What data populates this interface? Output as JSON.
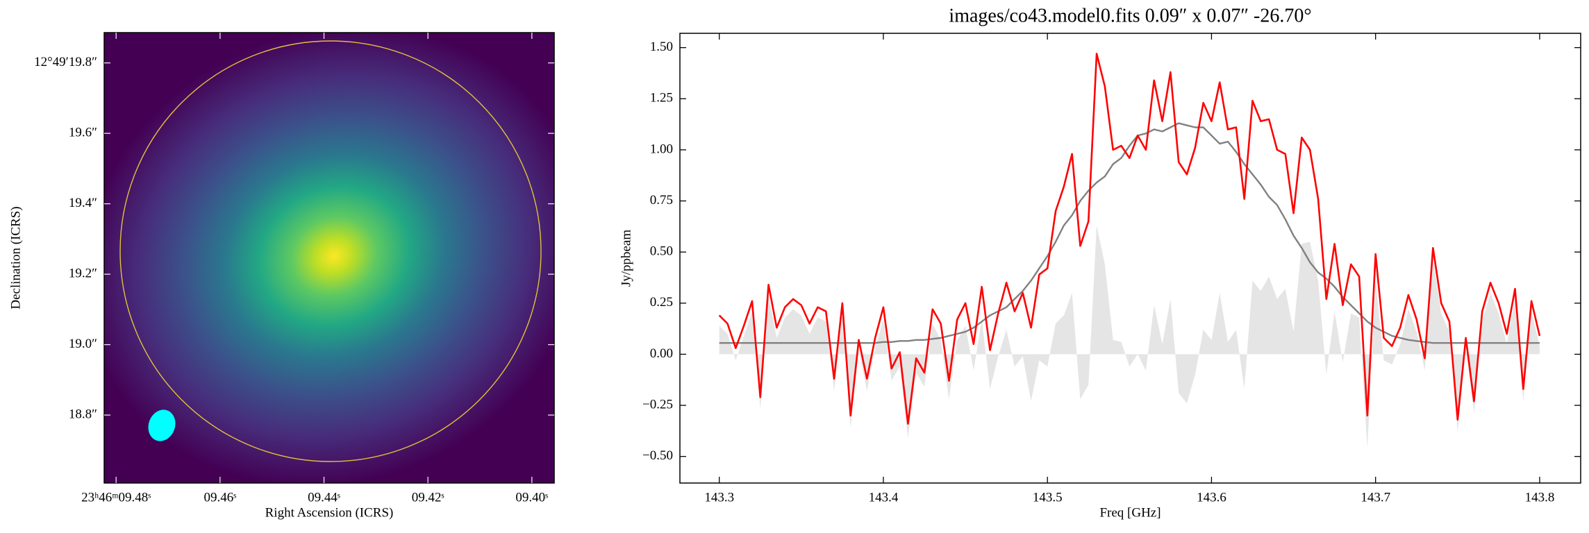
{
  "chart_data": [
    {
      "type": "image",
      "xlabel": "Right Ascension (ICRS)",
      "ylabel": "Declination (ICRS)",
      "colormap": "viridis",
      "xlim": [
        9.4823,
        9.3957
      ],
      "ylim": [
        18.607,
        19.886
      ],
      "xticks": [
        {
          "value": 9.48,
          "label": "23ʰ46ᵐ09.48ˢ"
        },
        {
          "value": 9.46,
          "label": "09.46ˢ"
        },
        {
          "value": 9.44,
          "label": "09.44ˢ"
        },
        {
          "value": 9.42,
          "label": "09.42ˢ"
        },
        {
          "value": 9.4,
          "label": "09.40ˢ"
        }
      ],
      "yticks": [
        {
          "value": 19.8,
          "label": "12°49′19.8″"
        },
        {
          "value": 19.6,
          "label": "19.6″"
        },
        {
          "value": 19.4,
          "label": "19.4″"
        },
        {
          "value": 19.2,
          "label": "19.2″"
        },
        {
          "value": 19.0,
          "label": "19.0″"
        },
        {
          "value": 18.8,
          "label": "18.8″"
        }
      ]
    },
    {
      "type": "line",
      "title": "images/co43.model0.fits 0.09″ x 0.07″ -26.70°",
      "xlabel": "Freq [GHz]",
      "ylabel": "Jy/ppbeam",
      "xlim": [
        143.276,
        143.825
      ],
      "ylim": [
        -0.63,
        1.57
      ],
      "xticks": [
        143.3,
        143.4,
        143.5,
        143.6,
        143.7,
        143.8
      ],
      "yticks": [
        {
          "value": 1.5,
          "label": "1.50"
        },
        {
          "value": 1.25,
          "label": "1.25"
        },
        {
          "value": 1.0,
          "label": "1.00"
        },
        {
          "value": 0.75,
          "label": "0.75"
        },
        {
          "value": 0.5,
          "label": "0.50"
        },
        {
          "value": 0.25,
          "label": "0.25"
        },
        {
          "value": 0.0,
          "label": "0.00"
        },
        {
          "value": -0.25,
          "label": "−0.25"
        },
        {
          "value": -0.5,
          "label": "−0.50"
        }
      ],
      "x": [
        143.3,
        143.305,
        143.31,
        143.315,
        143.32,
        143.325,
        143.33,
        143.335,
        143.34,
        143.345,
        143.35,
        143.355,
        143.36,
        143.365,
        143.37,
        143.375,
        143.38,
        143.385,
        143.39,
        143.395,
        143.4,
        143.405,
        143.41,
        143.415,
        143.42,
        143.425,
        143.43,
        143.435,
        143.44,
        143.445,
        143.45,
        143.455,
        143.46,
        143.465,
        143.47,
        143.475,
        143.48,
        143.485,
        143.49,
        143.495,
        143.5,
        143.505,
        143.51,
        143.515,
        143.52,
        143.525,
        143.53,
        143.535,
        143.54,
        143.545,
        143.55,
        143.555,
        143.56,
        143.565,
        143.57,
        143.575,
        143.58,
        143.585,
        143.59,
        143.595,
        143.6,
        143.605,
        143.61,
        143.615,
        143.62,
        143.625,
        143.63,
        143.635,
        143.64,
        143.645,
        143.65,
        143.655,
        143.66,
        143.665,
        143.67,
        143.675,
        143.68,
        143.685,
        143.69,
        143.695,
        143.7,
        143.705,
        143.71,
        143.715,
        143.72,
        143.725,
        143.73,
        143.735,
        143.74,
        143.745,
        143.75,
        143.755,
        143.76,
        143.765,
        143.77,
        143.775,
        143.78,
        143.785,
        143.79,
        143.795,
        143.8
      ],
      "series": [
        {
          "color": "#e5e5e5",
          "fill": true,
          "values": [
            0.14,
            0.1,
            -0.03,
            0.09,
            0.21,
            -0.27,
            0.29,
            0.08,
            0.18,
            0.22,
            0.19,
            0.1,
            0.18,
            0.16,
            -0.18,
            0.2,
            -0.36,
            0.02,
            -0.18,
            0.03,
            0.17,
            -0.13,
            -0.06,
            -0.41,
            -0.09,
            -0.16,
            0.15,
            0.07,
            -0.22,
            0.07,
            0.14,
            -0.08,
            0.17,
            -0.17,
            -0.01,
            0.12,
            -0.06,
            -0.01,
            -0.23,
            -0.03,
            -0.06,
            0.15,
            0.19,
            0.3,
            -0.22,
            -0.15,
            0.63,
            0.44,
            0.07,
            0.06,
            -0.06,
            0,
            -0.08,
            0.24,
            0.05,
            0.27,
            -0.19,
            -0.24,
            -0.1,
            0.12,
            0.07,
            0.3,
            0.06,
            0.12,
            -0.17,
            0.36,
            0.31,
            0.38,
            0.27,
            0.32,
            0.11,
            0.54,
            0.55,
            0.36,
            -0.1,
            0.21,
            -0.04,
            0.2,
            0.18,
            -0.46,
            0.36,
            -0.03,
            -0.05,
            0.05,
            0.22,
            0.11,
            -0.08,
            0.47,
            0.2,
            0.11,
            -0.38,
            0.03,
            -0.29,
            0.16,
            0.3,
            0.2,
            0.05,
            0.27,
            -0.23,
            0.21,
            0.04
          ]
        },
        {
          "color": "#808080",
          "values": [
            0.055,
            0.055,
            0.055,
            0.055,
            0.055,
            0.055,
            0.055,
            0.055,
            0.055,
            0.055,
            0.055,
            0.055,
            0.055,
            0.055,
            0.055,
            0.055,
            0.055,
            0.055,
            0.055,
            0.055,
            0.06,
            0.06,
            0.065,
            0.065,
            0.07,
            0.07,
            0.075,
            0.08,
            0.09,
            0.1,
            0.11,
            0.13,
            0.16,
            0.19,
            0.21,
            0.23,
            0.27,
            0.31,
            0.36,
            0.42,
            0.48,
            0.55,
            0.63,
            0.68,
            0.75,
            0.8,
            0.84,
            0.87,
            0.93,
            0.96,
            1.02,
            1.07,
            1.08,
            1.1,
            1.09,
            1.11,
            1.13,
            1.12,
            1.11,
            1.11,
            1.07,
            1.03,
            1.04,
            0.99,
            0.93,
            0.88,
            0.83,
            0.77,
            0.73,
            0.66,
            0.58,
            0.52,
            0.45,
            0.4,
            0.37,
            0.33,
            0.28,
            0.24,
            0.2,
            0.16,
            0.13,
            0.11,
            0.09,
            0.08,
            0.07,
            0.065,
            0.06,
            0.055,
            0.055,
            0.055,
            0.055,
            0.055,
            0.055,
            0.055,
            0.055,
            0.055,
            0.055,
            0.055,
            0.055,
            0.055,
            0.055
          ]
        },
        {
          "color": "#ff0000",
          "values": [
            0.19,
            0.15,
            0.03,
            0.14,
            0.26,
            -0.21,
            0.34,
            0.13,
            0.23,
            0.27,
            0.24,
            0.15,
            0.23,
            0.21,
            -0.12,
            0.25,
            -0.3,
            0.07,
            -0.12,
            0.08,
            0.23,
            -0.07,
            0.01,
            -0.34,
            -0.02,
            -0.09,
            0.22,
            0.15,
            -0.13,
            0.17,
            0.25,
            0.05,
            0.33,
            0.02,
            0.2,
            0.35,
            0.21,
            0.3,
            0.13,
            0.39,
            0.42,
            0.7,
            0.82,
            0.98,
            0.53,
            0.65,
            1.47,
            1.31,
            1.0,
            1.02,
            0.96,
            1.07,
            1.0,
            1.34,
            1.14,
            1.38,
            0.94,
            0.88,
            1.01,
            1.23,
            1.14,
            1.33,
            1.1,
            1.11,
            0.76,
            1.24,
            1.14,
            1.15,
            1.0,
            0.98,
            0.69,
            1.06,
            1.0,
            0.76,
            0.27,
            0.54,
            0.24,
            0.44,
            0.38,
            -0.3,
            0.49,
            0.08,
            0.04,
            0.13,
            0.29,
            0.17,
            -0.02,
            0.52,
            0.25,
            0.16,
            -0.32,
            0.08,
            -0.23,
            0.21,
            0.35,
            0.25,
            0.1,
            0.32,
            -0.17,
            0.26,
            0.09
          ]
        }
      ]
    }
  ]
}
